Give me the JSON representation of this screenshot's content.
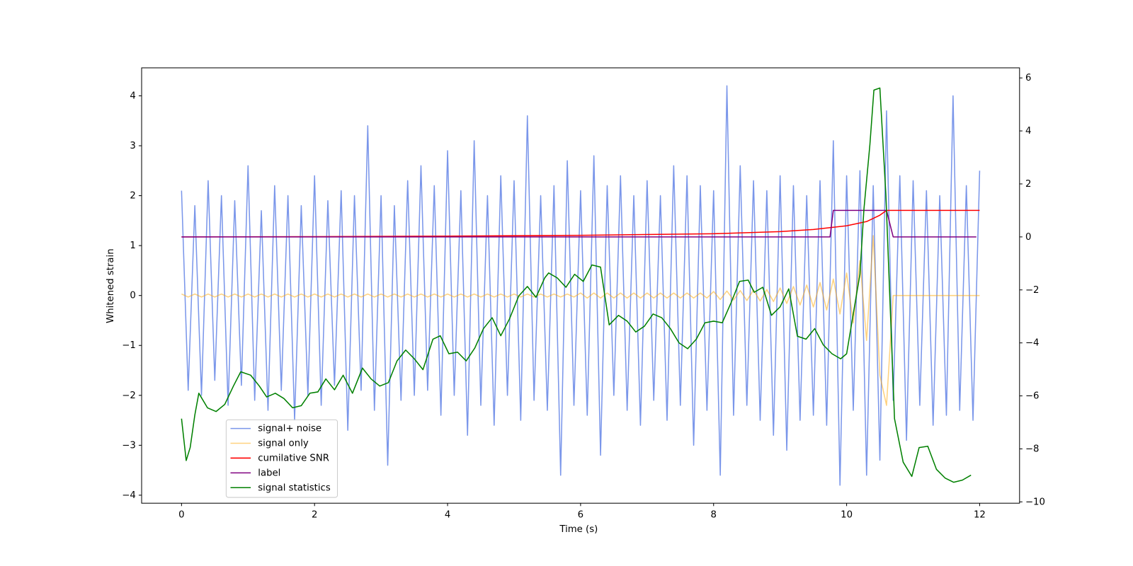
{
  "chart_data": {
    "type": "line",
    "xlabel": "Time (s)",
    "ylabel": "Whitened strain",
    "xlim": [
      -0.6,
      12.6
    ],
    "ylim": [
      -4.16,
      4.56
    ],
    "y2lim": [
      -10.05,
      6.38
    ],
    "xticks": [
      0,
      2,
      4,
      6,
      8,
      10,
      12
    ],
    "yticks": [
      {
        "value": -4,
        "label": "−4"
      },
      {
        "value": -3,
        "label": "−3"
      },
      {
        "value": -2,
        "label": "−2"
      },
      {
        "value": -1,
        "label": "−1"
      },
      0,
      1,
      2,
      3,
      4
    ],
    "y2ticks": [
      {
        "value": -10,
        "label": "−10"
      },
      {
        "value": -8,
        "label": "−8"
      },
      {
        "value": -6,
        "label": "−6"
      },
      {
        "value": -4,
        "label": "−4"
      },
      {
        "value": -2,
        "label": "−2"
      },
      0,
      2,
      4,
      6
    ],
    "legend": "lower left",
    "x": [
      0,
      0.1,
      0.2,
      0.3,
      0.4,
      0.5,
      0.6,
      0.7,
      0.8,
      0.9,
      1,
      1.1,
      1.2,
      1.3,
      1.4,
      1.5,
      1.6,
      1.7,
      1.8,
      1.9,
      2,
      2.1,
      2.2,
      2.3,
      2.4,
      2.5,
      2.6,
      2.7,
      2.8,
      2.9,
      3,
      3.1,
      3.2,
      3.3,
      3.4,
      3.5,
      3.6,
      3.7,
      3.8,
      3.9,
      4,
      4.1,
      4.2,
      4.3,
      4.4,
      4.5,
      4.6,
      4.7,
      4.8,
      4.9,
      5,
      5.1,
      5.2,
      5.3,
      5.4,
      5.5,
      5.6,
      5.7,
      5.8,
      5.9,
      6,
      6.1,
      6.2,
      6.3,
      6.4,
      6.5,
      6.6,
      6.7,
      6.8,
      6.9,
      7,
      7.1,
      7.2,
      7.3,
      7.4,
      7.5,
      7.6,
      7.7,
      7.8,
      7.9,
      8,
      8.1,
      8.2,
      8.3,
      8.4,
      8.5,
      8.6,
      8.7,
      8.8,
      8.9,
      9,
      9.1,
      9.2,
      9.3,
      9.4,
      9.5,
      9.6,
      9.7,
      9.8,
      9.9,
      10,
      10.1,
      10.2,
      10.3,
      10.4,
      10.5,
      10.6,
      10.7,
      10.8,
      10.9,
      11,
      11.1,
      11.2,
      11.3,
      11.4,
      11.5,
      11.6,
      11.7,
      11.8,
      11.9,
      12
    ],
    "series": [
      {
        "name": "signal+ noise",
        "color": "#4169e1",
        "alpha": 0.7,
        "axis": "y",
        "values": [
          2.1,
          -1.9,
          1.8,
          -2.0,
          2.3,
          -1.7,
          2.0,
          -2.2,
          1.9,
          -1.8,
          2.6,
          -2.1,
          1.7,
          -2.3,
          2.2,
          -1.9,
          2.0,
          -2.5,
          1.8,
          -2.0,
          2.4,
          -2.2,
          1.9,
          -1.8,
          2.1,
          -2.7,
          2.0,
          -1.9,
          3.4,
          -2.3,
          2.0,
          -3.4,
          1.8,
          -2.1,
          2.3,
          -2.0,
          2.6,
          -1.9,
          2.2,
          -2.4,
          2.9,
          -2.0,
          2.1,
          -2.8,
          3.1,
          -2.2,
          2.0,
          -2.6,
          2.4,
          -2.0,
          2.3,
          -2.5,
          3.6,
          -2.1,
          2.0,
          -2.3,
          2.2,
          -3.6,
          2.7,
          -2.2,
          2.1,
          -2.4,
          2.8,
          -3.2,
          2.2,
          -2.0,
          2.4,
          -2.3,
          2.0,
          -2.6,
          2.3,
          -2.1,
          2.0,
          -2.5,
          2.6,
          -2.2,
          2.4,
          -3.0,
          2.2,
          -2.3,
          2.1,
          -3.6,
          4.2,
          -2.4,
          2.6,
          -2.2,
          2.3,
          -2.5,
          2.1,
          -2.8,
          2.4,
          -3.1,
          2.2,
          -2.5,
          2.0,
          -2.4,
          2.3,
          -2.6,
          3.1,
          -3.8,
          2.4,
          -2.3,
          2.5,
          -3.6,
          2.2,
          -3.3,
          3.7,
          -2.1,
          2.4,
          -2.9,
          2.3,
          -2.2,
          2.1,
          -2.6,
          2.0,
          -2.4,
          4.0,
          -2.3,
          2.2,
          -2.5,
          2.5
        ]
      },
      {
        "name": "signal only",
        "color": "#ffa500",
        "alpha": 0.5,
        "axis": "y",
        "values": [
          0.03,
          -0.03,
          0.03,
          -0.03,
          0.03,
          -0.03,
          0.03,
          -0.03,
          0.03,
          -0.03,
          0.03,
          -0.03,
          0.03,
          -0.03,
          0.03,
          -0.03,
          0.03,
          -0.03,
          0.03,
          -0.03,
          0.03,
          -0.03,
          0.03,
          -0.03,
          0.03,
          -0.03,
          0.03,
          -0.03,
          0.03,
          -0.03,
          0.03,
          -0.03,
          0.03,
          -0.03,
          0.03,
          -0.03,
          0.03,
          -0.03,
          0.03,
          -0.03,
          0.03,
          -0.03,
          0.03,
          -0.03,
          0.03,
          -0.03,
          0.03,
          -0.03,
          0.03,
          -0.03,
          0.03,
          -0.03,
          0.03,
          -0.03,
          0.03,
          -0.03,
          0.03,
          -0.03,
          0.03,
          -0.03,
          0.05,
          -0.05,
          0.05,
          -0.05,
          0.05,
          -0.05,
          0.05,
          -0.05,
          0.05,
          -0.05,
          0.05,
          -0.05,
          0.05,
          -0.05,
          0.05,
          -0.05,
          0.05,
          -0.05,
          0.05,
          -0.05,
          0.08,
          -0.08,
          0.09,
          -0.09,
          0.1,
          -0.1,
          0.11,
          -0.11,
          0.12,
          -0.12,
          0.15,
          -0.16,
          0.18,
          -0.19,
          0.21,
          -0.23,
          0.26,
          -0.29,
          0.33,
          -0.37,
          0.45,
          -0.55,
          0.7,
          -0.9,
          1.2,
          -1.6,
          -2.2,
          0,
          0,
          0,
          0,
          0,
          0,
          0,
          0,
          0,
          0,
          0,
          0,
          0,
          0
        ]
      },
      {
        "name": "cumilative SNR",
        "color": "#ff0000",
        "alpha": 1,
        "axis": "y2",
        "x": [
          0,
          2,
          4,
          6,
          8,
          9,
          9.5,
          10,
          10.3,
          10.5,
          10.6,
          12
        ],
        "values": [
          0,
          0.01,
          0.03,
          0.06,
          0.12,
          0.2,
          0.28,
          0.42,
          0.58,
          0.82,
          1,
          1
        ]
      },
      {
        "name": "label",
        "color": "#800080",
        "alpha": 1,
        "axis": "y2",
        "x": [
          0,
          9.75,
          9.8,
          10.6,
          10.7,
          11.95
        ],
        "values": [
          0,
          0,
          1,
          1,
          0,
          0
        ]
      },
      {
        "name": "signal statistics",
        "color": "#008000",
        "alpha": 1,
        "axis": "y2",
        "x": [
          0,
          0.07,
          0.13,
          0.2,
          0.26,
          0.39,
          0.52,
          0.65,
          0.78,
          0.89,
          1.04,
          1.17,
          1.28,
          1.41,
          1.54,
          1.67,
          1.8,
          1.93,
          2.05,
          2.17,
          2.3,
          2.43,
          2.57,
          2.72,
          2.85,
          2.98,
          3.11,
          3.24,
          3.37,
          3.5,
          3.63,
          3.78,
          3.89,
          4.02,
          4.15,
          4.28,
          4.41,
          4.54,
          4.67,
          4.8,
          4.93,
          5.07,
          5.2,
          5.33,
          5.46,
          5.52,
          5.65,
          5.78,
          5.91,
          6.04,
          6.17,
          6.3,
          6.43,
          6.57,
          6.7,
          6.83,
          6.96,
          7.09,
          7.22,
          7.35,
          7.48,
          7.61,
          7.74,
          7.87,
          8.0,
          8.13,
          8.26,
          8.39,
          8.52,
          8.61,
          8.74,
          8.87,
          9.0,
          9.13,
          9.26,
          9.39,
          9.52,
          9.65,
          9.78,
          9.91,
          10.0,
          10.09,
          10.2,
          10.26,
          10.35,
          10.41,
          10.5,
          10.59,
          10.72,
          10.85,
          10.98,
          11.09,
          11.22,
          11.35,
          11.48,
          11.61,
          11.74,
          11.87
        ],
        "values": [
          -6.86,
          -8.44,
          -7.95,
          -6.72,
          -5.9,
          -6.45,
          -6.59,
          -6.32,
          -5.63,
          -5.09,
          -5.22,
          -5.63,
          -6.04,
          -5.9,
          -6.1,
          -6.45,
          -6.37,
          -5.9,
          -5.85,
          -5.36,
          -5.77,
          -5.22,
          -5.9,
          -4.95,
          -5.36,
          -5.63,
          -5.5,
          -4.68,
          -4.27,
          -4.6,
          -5.01,
          -3.86,
          -3.73,
          -4.41,
          -4.35,
          -4.68,
          -4.19,
          -3.46,
          -3.05,
          -3.73,
          -3.1,
          -2.23,
          -1.87,
          -2.28,
          -1.55,
          -1.36,
          -1.55,
          -1.9,
          -1.41,
          -1.68,
          -1.06,
          -1.14,
          -3.32,
          -2.96,
          -3.18,
          -3.59,
          -3.37,
          -2.91,
          -3.05,
          -3.46,
          -4.0,
          -4.22,
          -3.86,
          -3.24,
          -3.18,
          -3.24,
          -2.5,
          -1.68,
          -1.63,
          -2.09,
          -1.9,
          -2.96,
          -2.64,
          -1.96,
          -3.75,
          -3.86,
          -3.46,
          -4.08,
          -4.41,
          -4.6,
          -4.41,
          -3.05,
          -1.41,
          1.04,
          3.49,
          5.54,
          5.62,
          1.59,
          -6.86,
          -8.5,
          -9.04,
          -7.95,
          -7.9,
          -8.77,
          -9.1,
          -9.26,
          -9.18,
          -8.99
        ]
      }
    ]
  }
}
